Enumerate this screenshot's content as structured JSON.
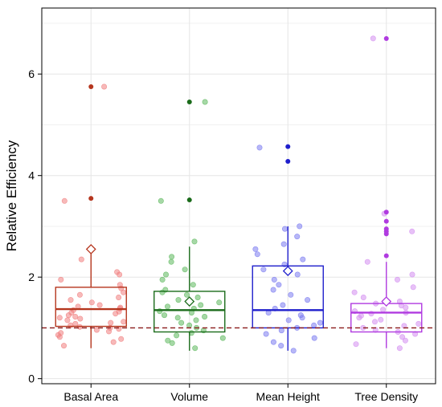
{
  "chart_data": {
    "type": "box",
    "title": "",
    "xlabel": "",
    "ylabel": "Relative Efficiency",
    "ylim": [
      -0.1,
      7.3
    ],
    "yticks": [
      0,
      2,
      4,
      6
    ],
    "grid": true,
    "legend": "none",
    "reference_line": {
      "y": 1.0,
      "style": "dashed",
      "color": "#8b1a1a"
    },
    "categories": [
      "Basal Area",
      "Volume",
      "Mean Height",
      "Tree Density"
    ],
    "series": [
      {
        "category": "Basal Area",
        "color": "#b5361e",
        "point_color": "#f08080",
        "stats": {
          "whisker_low": 0.6,
          "q1": 1.03,
          "median": 1.37,
          "q3": 1.8,
          "whisker_high": 2.5,
          "mean": 2.55
        },
        "outliers": [
          3.55,
          5.75
        ],
        "points": [
          0.65,
          0.72,
          0.78,
          0.82,
          0.86,
          0.9,
          0.93,
          0.96,
          0.98,
          1.0,
          1.02,
          1.05,
          1.08,
          1.1,
          1.12,
          1.15,
          1.18,
          1.2,
          1.22,
          1.25,
          1.28,
          1.3,
          1.32,
          1.35,
          1.38,
          1.4,
          1.42,
          1.45,
          1.5,
          1.55,
          1.6,
          1.65,
          1.7,
          1.78,
          1.85,
          1.95,
          2.05,
          2.1,
          2.35,
          3.5,
          5.75
        ]
      },
      {
        "category": "Volume",
        "color": "#1a6b1a",
        "point_color": "#5cb85c",
        "stats": {
          "whisker_low": 0.55,
          "q1": 0.92,
          "median": 1.35,
          "q3": 1.72,
          "whisker_high": 2.6,
          "mean": 1.52
        },
        "outliers": [
          3.52,
          5.45
        ],
        "points": [
          0.6,
          0.7,
          0.75,
          0.8,
          0.85,
          0.9,
          0.95,
          1.0,
          1.05,
          1.1,
          1.15,
          1.2,
          1.22,
          1.25,
          1.3,
          1.33,
          1.38,
          1.42,
          1.45,
          1.5,
          1.55,
          1.6,
          1.65,
          1.7,
          1.75,
          1.85,
          1.95,
          2.05,
          2.15,
          2.3,
          2.4,
          2.7,
          3.5,
          5.45
        ]
      },
      {
        "category": "Mean Height",
        "color": "#1f1fcc",
        "point_color": "#7b7bf0",
        "stats": {
          "whisker_low": 0.55,
          "q1": 1.0,
          "median": 1.35,
          "q3": 2.22,
          "whisker_high": 3.0,
          "mean": 2.12
        },
        "outliers": [
          4.28,
          4.57
        ],
        "points": [
          0.55,
          0.65,
          0.72,
          0.8,
          0.88,
          0.95,
          1.0,
          1.05,
          1.1,
          1.15,
          1.2,
          1.25,
          1.3,
          1.38,
          1.45,
          1.55,
          1.65,
          1.75,
          1.85,
          1.95,
          2.05,
          2.15,
          2.25,
          2.35,
          2.45,
          2.55,
          2.65,
          2.8,
          2.95,
          3.0,
          4.55
        ]
      },
      {
        "category": "Tree Density",
        "color": "#b03be0",
        "point_color": "#d48ef0",
        "stats": {
          "whisker_low": 0.6,
          "q1": 0.92,
          "median": 1.3,
          "q3": 1.48,
          "whisker_high": 2.3,
          "mean": 1.52
        },
        "outliers": [
          2.42,
          2.85,
          2.9,
          2.95,
          3.1,
          3.28,
          6.7
        ],
        "points": [
          0.6,
          0.68,
          0.75,
          0.82,
          0.88,
          0.92,
          0.96,
          1.0,
          1.04,
          1.08,
          1.12,
          1.16,
          1.2,
          1.24,
          1.28,
          1.3,
          1.33,
          1.36,
          1.4,
          1.44,
          1.48,
          1.52,
          1.6,
          1.7,
          1.8,
          1.95,
          2.05,
          2.3,
          2.9,
          3.25,
          6.7
        ]
      }
    ]
  }
}
